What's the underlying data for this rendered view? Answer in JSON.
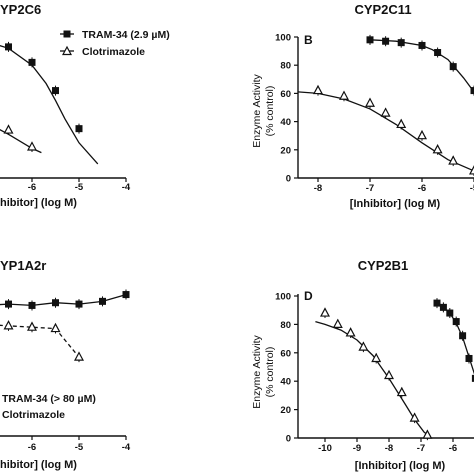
{
  "chart_data": [
    {
      "panel": "A",
      "type": "scatter",
      "title": "YP2C6",
      "xlabel": "hibitor] (log M)",
      "x_ticks": [
        "-6",
        "-5",
        "-4"
      ],
      "legend": [
        {
          "marker": "square",
          "label": "TRAM-34 (2.9 µM)"
        },
        {
          "marker": "triangle",
          "label": "Clotrimazole"
        }
      ],
      "series": [
        {
          "name": "TRAM-34 (2.9 µM)",
          "marker": "square",
          "line": "solid",
          "x": [
            -7.3,
            -7.0,
            -6.5,
            -6.0,
            -5.5,
            -5.0
          ],
          "y": [
            100,
            98,
            93,
            82,
            62,
            35
          ],
          "curve_x": [
            -7.8,
            -7.3,
            -7.0,
            -6.5,
            -6.0,
            -5.7,
            -5.5,
            -5.3,
            -5.0,
            -4.6
          ],
          "curve_y": [
            100,
            99,
            97,
            92,
            80,
            67,
            55,
            42,
            25,
            10
          ]
        },
        {
          "name": "Clotrimazole",
          "marker": "triangle",
          "line": "solid",
          "x": [
            -7.3,
            -6.5,
            -6.0
          ],
          "y": [
            45,
            34,
            22
          ],
          "curve_x": [
            -7.8,
            -7.3,
            -7.0,
            -6.5,
            -6.0,
            -5.8
          ],
          "curve_y": [
            55,
            46,
            40,
            31,
            21,
            18
          ]
        }
      ]
    },
    {
      "panel": "B",
      "type": "scatter",
      "title": "CYP2C11",
      "xlabel": "[Inhibitor] (log M)",
      "ylabel": "Enzyme Activity (% control)",
      "ylim": [
        0,
        100
      ],
      "y_ticks": [
        "0",
        "20",
        "40",
        "60",
        "80",
        "100"
      ],
      "x_ticks": [
        "-8",
        "-7",
        "-6",
        "-5"
      ],
      "series": [
        {
          "name": "TRAM-34",
          "marker": "square",
          "line": "solid",
          "x": [
            -7.0,
            -6.7,
            -6.4,
            -6.0,
            -5.7,
            -5.4,
            -5.0
          ],
          "y": [
            98,
            97,
            96,
            94,
            89,
            79,
            62
          ],
          "curve_x": [
            -7.0,
            -6.5,
            -6.0,
            -5.8,
            -5.5,
            -5.2,
            -5.0,
            -4.9
          ],
          "curve_y": [
            98,
            97,
            94,
            91,
            84,
            71,
            61,
            55
          ]
        },
        {
          "name": "Clotrimazole",
          "marker": "triangle",
          "line": "solid",
          "x": [
            -8.5,
            -8.0,
            -7.5,
            -7.0,
            -6.7,
            -6.4,
            -6.0,
            -5.7,
            -5.4,
            -5.0
          ],
          "y": [
            65,
            62,
            58,
            53,
            46,
            38,
            30,
            20,
            12,
            5
          ],
          "curve_x": [
            -8.7,
            -8.0,
            -7.5,
            -7.0,
            -6.5,
            -6.0,
            -5.5,
            -5.0
          ],
          "curve_y": [
            62,
            60,
            56,
            49,
            38,
            25,
            13,
            5
          ]
        }
      ]
    },
    {
      "panel": "C",
      "type": "scatter",
      "title": "YP1A2r",
      "xlabel": "hibitor] (log M)",
      "x_ticks": [
        "-6",
        "-5",
        "-4"
      ],
      "legend": [
        {
          "marker": "square",
          "label": "TRAM-34 (> 80 µM)"
        },
        {
          "marker": "triangle",
          "label": "Clotrimazole"
        }
      ],
      "series": [
        {
          "name": "TRAM-34 (> 80 µM)",
          "marker": "square",
          "line": "solid",
          "x": [
            -7.3,
            -7.0,
            -6.5,
            -6.0,
            -5.5,
            -5.0,
            -4.5,
            -4.0
          ],
          "y": [
            95,
            96,
            97,
            96,
            98,
            97,
            99,
            104
          ]
        },
        {
          "name": "Clotrimazole",
          "marker": "triangle",
          "line": "dashed",
          "x": [
            -7.3,
            -7.0,
            -6.5,
            -6.0,
            -5.5,
            -5.0
          ],
          "y": [
            83,
            82,
            81,
            80,
            79,
            58
          ]
        }
      ]
    },
    {
      "panel": "D",
      "type": "scatter",
      "title": "CYP2B1",
      "xlabel": "[Inhibitor] (log M)",
      "ylabel": "Enzyme Activity (% control)",
      "ylim": [
        0,
        100
      ],
      "y_ticks": [
        "0",
        "20",
        "40",
        "60",
        "80",
        "100"
      ],
      "x_ticks": [
        "-10",
        "-9",
        "-8",
        "-7",
        "-6"
      ],
      "series": [
        {
          "name": "TRAM-34",
          "marker": "square",
          "line": "solid",
          "x": [
            -6.5,
            -6.3,
            -6.1,
            -5.9,
            -5.7,
            -5.5,
            -5.3
          ],
          "y": [
            95,
            92,
            88,
            82,
            72,
            56,
            42
          ],
          "curve_x": [
            -6.5,
            -6.3,
            -6.1,
            -5.9,
            -5.7,
            -5.5,
            -5.3,
            -5.15
          ],
          "curve_y": [
            94,
            92,
            88,
            81,
            71,
            57,
            43,
            35
          ]
        },
        {
          "name": "Clotrimazole",
          "marker": "triangle",
          "line": "solid",
          "x": [
            -10.0,
            -9.6,
            -9.2,
            -8.8,
            -8.4,
            -8.0,
            -7.6,
            -7.2,
            -6.8
          ],
          "y": [
            88,
            80,
            74,
            64,
            56,
            44,
            32,
            14,
            2
          ],
          "curve_x": [
            -10.3,
            -10.0,
            -9.5,
            -9.0,
            -8.5,
            -8.0,
            -7.5,
            -7.2,
            -6.9,
            -6.7
          ],
          "curve_y": [
            82,
            80,
            76,
            69,
            58,
            42,
            24,
            13,
            4,
            1
          ]
        }
      ]
    }
  ]
}
